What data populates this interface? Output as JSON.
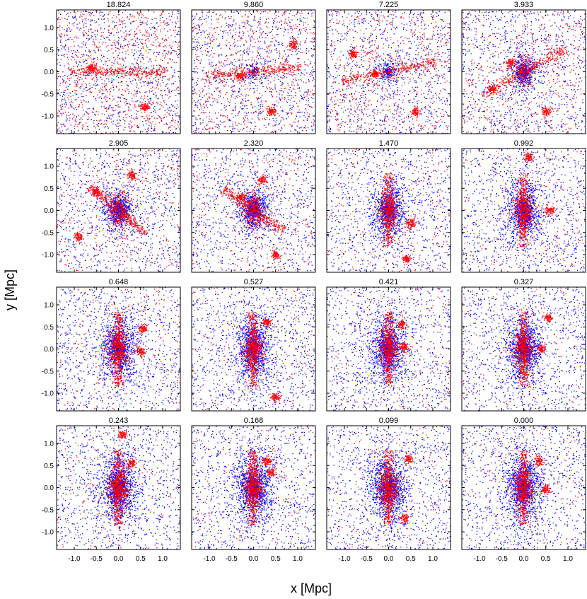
{
  "chart_data": {
    "type": "scatter",
    "title": "",
    "xlabel": "x [Mpc]",
    "ylabel": "y [Mpc]",
    "xlim": [
      -1.4,
      1.4
    ],
    "ylim": [
      -1.4,
      1.4
    ],
    "rows": 4,
    "cols": 4,
    "x_ticks": [
      -1.0,
      -0.5,
      0.0,
      0.5,
      1.0
    ],
    "x_tick_labels": [
      "-1.0",
      "-0.5",
      "0.0",
      "0.5",
      "1.0"
    ],
    "y_ticks": [
      1.0,
      0.5,
      0.0,
      -0.5,
      -1.0
    ],
    "y_tick_labels": [
      "1.0",
      "0.5",
      "0.0",
      "-0.5",
      "-1.0"
    ],
    "series_colors": {
      "red_particles": "#ff0000",
      "blue_particles": "#0000ff"
    },
    "panels": [
      {
        "title": "18.824",
        "core_size": 0.0,
        "red_scatter": 1.0,
        "filament_angle": 0.0,
        "clumps": [
          [
            0.6,
            -0.8
          ],
          [
            -0.6,
            0.1
          ]
        ]
      },
      {
        "title": "9.860",
        "core_size": 0.05,
        "red_scatter": 0.8,
        "filament_angle": 0.1,
        "clumps": [
          [
            -0.3,
            -0.1
          ],
          [
            0.4,
            -0.9
          ],
          [
            0.9,
            0.6
          ]
        ]
      },
      {
        "title": "7.225",
        "core_size": 0.1,
        "red_scatter": 0.7,
        "filament_angle": 0.2,
        "clumps": [
          [
            -0.3,
            -0.05
          ],
          [
            0.6,
            -0.9
          ],
          [
            -0.8,
            0.4
          ]
        ]
      },
      {
        "title": "3.933",
        "core_size": 0.25,
        "red_scatter": 0.6,
        "filament_angle": 0.5,
        "clumps": [
          [
            -0.3,
            0.2
          ],
          [
            -0.7,
            -0.4
          ],
          [
            0.5,
            -0.9
          ]
        ]
      },
      {
        "title": "2.905",
        "core_size": 0.35,
        "red_scatter": 0.45,
        "filament_angle": -0.7,
        "clumps": [
          [
            -0.5,
            0.4
          ],
          [
            -0.9,
            -0.6
          ],
          [
            0.3,
            0.8
          ]
        ]
      },
      {
        "title": "2.320",
        "core_size": 0.4,
        "red_scatter": 0.4,
        "filament_angle": -0.6,
        "clumps": [
          [
            -0.3,
            0.3
          ],
          [
            0.5,
            -1.0
          ],
          [
            0.2,
            0.7
          ]
        ]
      },
      {
        "title": "1.470",
        "core_size": 0.45,
        "red_scatter": 0.3,
        "filament_angle": 1.57,
        "clumps": [
          [
            0.4,
            -1.1
          ],
          [
            0.5,
            -0.3
          ]
        ]
      },
      {
        "title": "0.992",
        "core_size": 0.5,
        "red_scatter": 0.3,
        "filament_angle": 1.57,
        "clumps": [
          [
            0.6,
            0.0
          ],
          [
            0.1,
            1.2
          ]
        ]
      },
      {
        "title": "0.648",
        "core_size": 0.55,
        "red_scatter": 0.25,
        "filament_angle": 1.57,
        "clumps": [
          [
            0.5,
            -0.05
          ],
          [
            0.55,
            0.45
          ]
        ]
      },
      {
        "title": "0.527",
        "core_size": 0.55,
        "red_scatter": 0.25,
        "filament_angle": 1.57,
        "clumps": [
          [
            0.3,
            0.6
          ],
          [
            0.5,
            -1.1
          ]
        ]
      },
      {
        "title": "0.421",
        "core_size": 0.55,
        "red_scatter": 0.25,
        "filament_angle": 1.57,
        "clumps": [
          [
            0.35,
            0.05
          ],
          [
            0.3,
            0.55
          ]
        ]
      },
      {
        "title": "0.327",
        "core_size": 0.55,
        "red_scatter": 0.22,
        "filament_angle": 1.57,
        "clumps": [
          [
            0.4,
            0.0
          ],
          [
            0.55,
            0.7
          ]
        ]
      },
      {
        "title": "0.243",
        "core_size": 0.6,
        "red_scatter": 0.2,
        "filament_angle": 1.57,
        "clumps": [
          [
            0.3,
            0.55
          ],
          [
            0.1,
            1.2
          ]
        ]
      },
      {
        "title": "0.168",
        "core_size": 0.6,
        "red_scatter": 0.2,
        "filament_angle": 1.57,
        "clumps": [
          [
            0.3,
            0.6
          ],
          [
            0.4,
            0.35
          ]
        ]
      },
      {
        "title": "0.099",
        "core_size": 0.6,
        "red_scatter": 0.2,
        "filament_angle": 1.57,
        "clumps": [
          [
            0.45,
            0.65
          ],
          [
            0.35,
            -0.7
          ]
        ]
      },
      {
        "title": "0.000",
        "core_size": 0.6,
        "red_scatter": 0.2,
        "filament_angle": 1.57,
        "clumps": [
          [
            0.35,
            0.6
          ],
          [
            0.5,
            -0.05
          ]
        ]
      }
    ]
  }
}
